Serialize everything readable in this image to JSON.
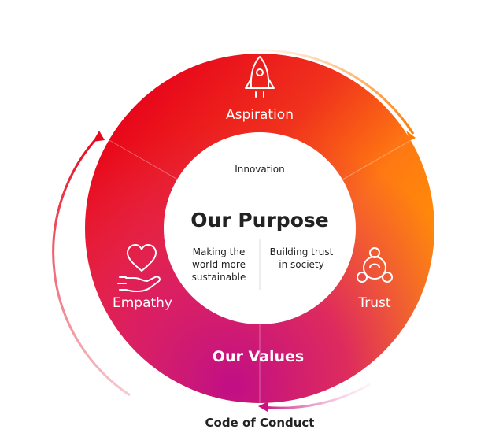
{
  "center": {
    "title": "Our Purpose",
    "top_text": "Innovation",
    "left_text": [
      "Making the",
      "world more",
      "sustainable"
    ],
    "right_text": [
      "Building trust",
      "in society"
    ]
  },
  "values": {
    "aspiration": "Aspiration",
    "empathy": "Empathy",
    "trust": "Trust",
    "ring_title": "Our Values"
  },
  "footer": {
    "code_of_conduct": "Code of Conduct"
  },
  "icons": {
    "aspiration": "rocket-icon",
    "empathy": "heart-hand-icon",
    "trust": "people-circle-icon"
  },
  "colors": {
    "red": "#e8071b",
    "orange": "#ff8a00",
    "magenta": "#c8127f",
    "pink": "#e0206a",
    "center": "#ffffff",
    "text_dark": "#222222"
  }
}
